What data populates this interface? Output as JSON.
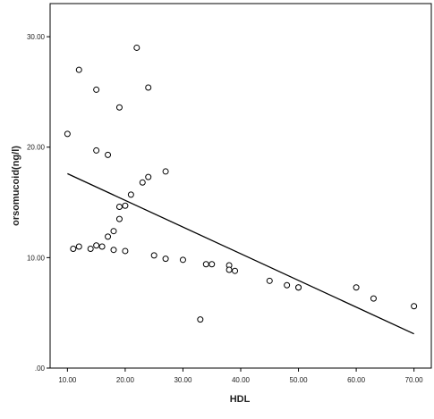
{
  "chart_data": {
    "type": "scatter",
    "xlabel": "HDL",
    "ylabel": "orsomucoid(ng/l)",
    "xlim": [
      7,
      73
    ],
    "ylim": [
      0,
      33
    ],
    "x_ticks": [
      10,
      20,
      30,
      40,
      50,
      60,
      70
    ],
    "x_tick_labels": [
      "10.00",
      "20.00",
      "30.00",
      "40.00",
      "50.00",
      "60.00",
      "70.00"
    ],
    "y_ticks": [
      0,
      10,
      20,
      30
    ],
    "y_tick_labels": [
      ".00",
      "10.00",
      "20.00",
      "30.00"
    ],
    "grid": false,
    "points": [
      {
        "x": 10,
        "y": 21.2
      },
      {
        "x": 11,
        "y": 10.8
      },
      {
        "x": 12,
        "y": 27.0
      },
      {
        "x": 12,
        "y": 11.0
      },
      {
        "x": 14,
        "y": 10.8
      },
      {
        "x": 15,
        "y": 25.2
      },
      {
        "x": 15,
        "y": 19.7
      },
      {
        "x": 15,
        "y": 11.1
      },
      {
        "x": 16,
        "y": 11.0
      },
      {
        "x": 17,
        "y": 19.3
      },
      {
        "x": 17,
        "y": 11.9
      },
      {
        "x": 18,
        "y": 12.4
      },
      {
        "x": 18,
        "y": 10.7
      },
      {
        "x": 19,
        "y": 23.6
      },
      {
        "x": 19,
        "y": 14.6
      },
      {
        "x": 19,
        "y": 13.5
      },
      {
        "x": 20,
        "y": 14.7
      },
      {
        "x": 20,
        "y": 10.6
      },
      {
        "x": 21,
        "y": 15.7
      },
      {
        "x": 22,
        "y": 29.0
      },
      {
        "x": 23,
        "y": 16.8
      },
      {
        "x": 24,
        "y": 25.4
      },
      {
        "x": 24,
        "y": 17.3
      },
      {
        "x": 25,
        "y": 10.2
      },
      {
        "x": 27,
        "y": 17.8
      },
      {
        "x": 27,
        "y": 9.9
      },
      {
        "x": 30,
        "y": 9.8
      },
      {
        "x": 33,
        "y": 4.4
      },
      {
        "x": 34,
        "y": 9.4
      },
      {
        "x": 35,
        "y": 9.4
      },
      {
        "x": 38,
        "y": 9.3
      },
      {
        "x": 38,
        "y": 8.9
      },
      {
        "x": 39,
        "y": 8.8
      },
      {
        "x": 45,
        "y": 7.9
      },
      {
        "x": 48,
        "y": 7.5
      },
      {
        "x": 50,
        "y": 7.3
      },
      {
        "x": 50,
        "y": 7.3
      },
      {
        "x": 60,
        "y": 7.3
      },
      {
        "x": 63,
        "y": 6.3
      },
      {
        "x": 70,
        "y": 5.6
      }
    ],
    "fit_line": {
      "x": [
        10,
        70
      ],
      "y": [
        17.6,
        3.1
      ]
    }
  }
}
